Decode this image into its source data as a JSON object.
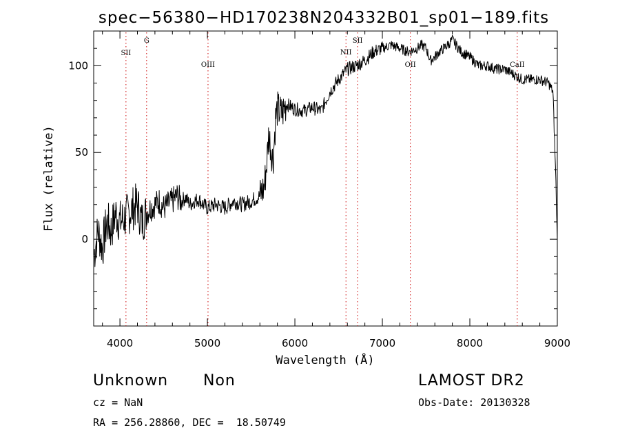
{
  "chart_data": {
    "type": "line",
    "title": "spec−56380−HD170238N204332B01_sp01−189.fits",
    "xlabel": "Wavelength (Å)",
    "ylabel": "Flux (relative)",
    "xlim": [
      3700,
      9000
    ],
    "ylim": [
      -50,
      120
    ],
    "xticks": [
      4000,
      5000,
      6000,
      7000,
      8000,
      9000
    ],
    "yticks": [
      0,
      50,
      100
    ],
    "grid": false,
    "series": [
      {
        "x": [
          3700,
          3750,
          3800,
          3850,
          3900,
          3950,
          4000,
          4050,
          4100,
          4150,
          4200,
          4250,
          4300,
          4350,
          4400,
          4450,
          4500,
          4550,
          4600,
          4650,
          4700,
          4750,
          4800,
          4850,
          4900,
          4950,
          5000,
          5100,
          5200,
          5300,
          5400,
          5500,
          5600,
          5650,
          5680,
          5700,
          5720,
          5750,
          5780,
          5800,
          5850,
          5900,
          6000,
          6100,
          6200,
          6300,
          6400,
          6500,
          6600,
          6700,
          6800,
          6900,
          7000,
          7100,
          7200,
          7300,
          7400,
          7450,
          7500,
          7550,
          7600,
          7650,
          7700,
          7750,
          7800,
          7900,
          8000,
          8100,
          8200,
          8300,
          8400,
          8500,
          8600,
          8700,
          8800,
          8900,
          8950,
          8980,
          9000
        ],
        "y": [
          -10,
          5,
          -5,
          10,
          5,
          15,
          10,
          12,
          15,
          18,
          20,
          10,
          15,
          18,
          20,
          22,
          18,
          20,
          22,
          25,
          22,
          24,
          20,
          22,
          23,
          20,
          18,
          20,
          18,
          22,
          20,
          22,
          25,
          30,
          45,
          60,
          55,
          45,
          70,
          75,
          72,
          78,
          75,
          74,
          76,
          74,
          85,
          92,
          98,
          100,
          103,
          108,
          110,
          112,
          110,
          108,
          110,
          112,
          110,
          103,
          105,
          108,
          110,
          112,
          115,
          108,
          105,
          100,
          100,
          98,
          98,
          95,
          92,
          92,
          92,
          90,
          85,
          40,
          0
        ]
      }
    ],
    "line_markers": [
      {
        "label": "SII",
        "x": 4069
      },
      {
        "label": "G",
        "x": 4305
      },
      {
        "label": "OIII",
        "x": 5007
      },
      {
        "label": "NII",
        "x": 6584
      },
      {
        "label": "SII",
        "x": 6717
      },
      {
        "label": "OII",
        "x": 7320
      },
      {
        "label": "CaII",
        "x": 8542
      }
    ],
    "line_color": "#000000",
    "marker_color": "#cc0000"
  },
  "info": {
    "object_class": "Unknown",
    "subclass": "Non",
    "survey": "LAMOST DR2",
    "cz": "cz = NaN",
    "obs_date": "Obs-Date: 20130328",
    "coords": "RA = 256.28860, DEC =  18.50749"
  }
}
